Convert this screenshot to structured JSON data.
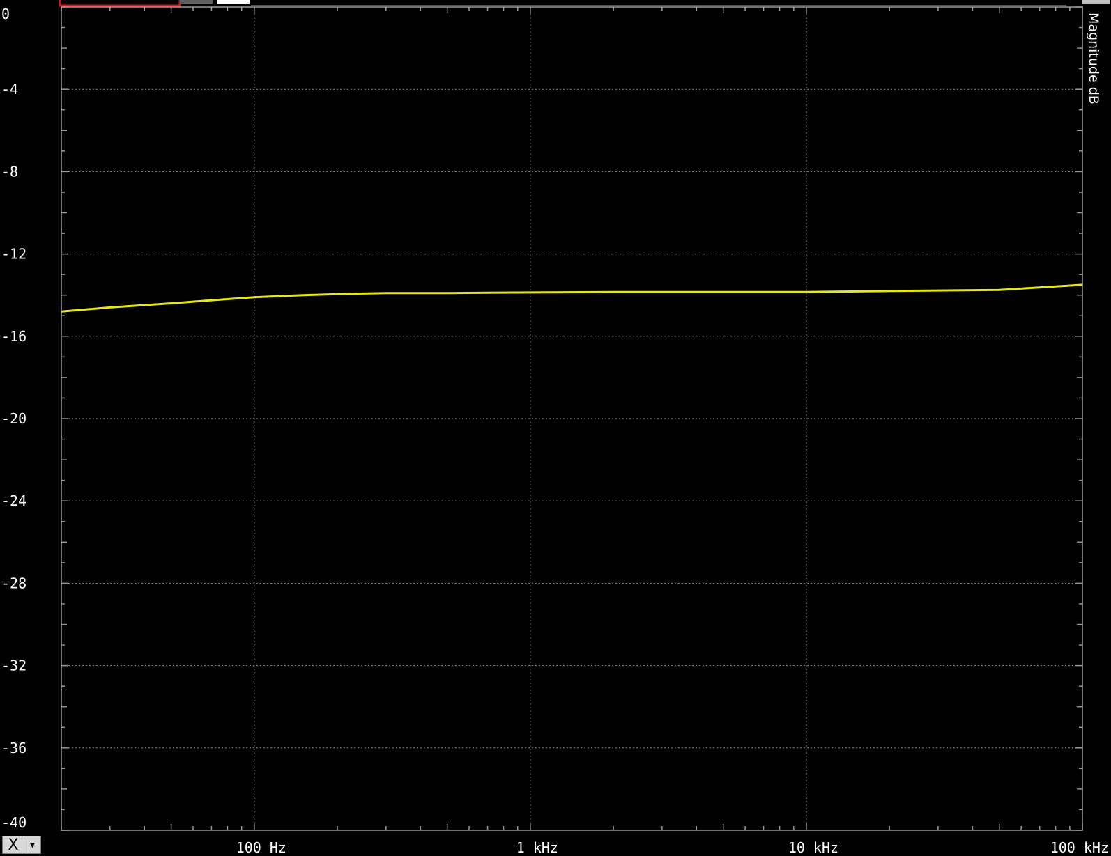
{
  "toolbar": {
    "accent_color": "#c81e1e"
  },
  "x_menu": {
    "label": "X",
    "chevron_icon": "chevron-down-icon"
  },
  "chart_data": {
    "type": "line",
    "xscale": "log",
    "xlim": [
      20,
      100000
    ],
    "ylim": [
      -40,
      0
    ],
    "ylabel": "Magnitude dB",
    "grid": true,
    "x_ticks": [
      {
        "value": 100,
        "label": "100 Hz"
      },
      {
        "value": 1000,
        "label": "1 kHz"
      },
      {
        "value": 10000,
        "label": "10 kHz"
      },
      {
        "value": 100000,
        "label": "100 kHz"
      }
    ],
    "y_ticks": [
      0,
      -4,
      -8,
      -12,
      -16,
      -20,
      -24,
      -28,
      -32,
      -36,
      -40
    ],
    "series": [
      {
        "color": "#e6e61a",
        "x": [
          20,
          30,
          50,
          70,
          100,
          150,
          200,
          300,
          500,
          700,
          1000,
          2000,
          5000,
          10000,
          20000,
          50000,
          100000
        ],
        "y": [
          -14.8,
          -14.6,
          -14.4,
          -14.25,
          -14.1,
          -14.0,
          -13.95,
          -13.9,
          -13.9,
          -13.88,
          -13.87,
          -13.85,
          -13.85,
          -13.85,
          -13.8,
          -13.75,
          -13.5
        ]
      }
    ]
  }
}
